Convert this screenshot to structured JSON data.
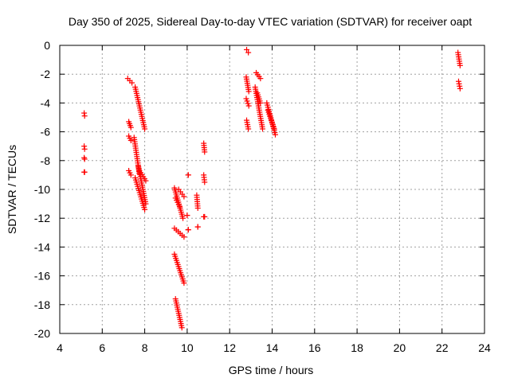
{
  "chart_data": {
    "type": "scatter",
    "title": "Day 350 of 2025, Sidereal Day-to-day VTEC variation (SDTVAR) for receiver oapt",
    "xlabel": "GPS time / hours",
    "ylabel": "SDTVAR / TECUs",
    "xlim": [
      4,
      24
    ],
    "ylim": [
      -20,
      0
    ],
    "x_ticks": [
      4,
      6,
      8,
      10,
      12,
      14,
      16,
      18,
      20,
      22,
      24
    ],
    "y_ticks": [
      0,
      -2,
      -4,
      -6,
      -8,
      -10,
      -12,
      -14,
      -16,
      -18,
      -20
    ],
    "grid": true,
    "marker": "+",
    "marker_color": "#ff0000",
    "segments": [
      {
        "x": [
          5.15,
          5.17
        ],
        "y": [
          -4.7,
          -4.9
        ]
      },
      {
        "x": [
          5.15,
          5.17
        ],
        "y": [
          -7.0,
          -7.2
        ]
      },
      {
        "x": [
          5.15,
          5.17
        ],
        "y": [
          -7.8,
          -7.9
        ]
      },
      {
        "x": [
          5.15,
          5.17
        ],
        "y": [
          -8.8,
          -8.8
        ]
      },
      {
        "x": [
          7.2,
          7.4
        ],
        "y": [
          -2.3,
          -2.6
        ]
      },
      {
        "x": [
          7.25,
          7.35
        ],
        "y": [
          -5.3,
          -5.7
        ]
      },
      {
        "x": [
          7.25,
          7.35
        ],
        "y": [
          -6.3,
          -6.6
        ]
      },
      {
        "x": [
          7.25,
          7.35
        ],
        "y": [
          -8.7,
          -9.0
        ]
      },
      {
        "x": [
          7.55,
          8.0
        ],
        "y": [
          -2.9,
          -5.8
        ]
      },
      {
        "x": [
          7.5,
          7.75
        ],
        "y": [
          -6.4,
          -8.9
        ]
      },
      {
        "x": [
          7.55,
          8.0
        ],
        "y": [
          -9.2,
          -11.4
        ]
      },
      {
        "x": [
          7.7,
          8.05
        ],
        "y": [
          -8.4,
          -11.0
        ]
      },
      {
        "x": [
          7.75,
          8.05
        ],
        "y": [
          -8.7,
          -9.4
        ]
      },
      {
        "x": [
          9.4,
          9.8
        ],
        "y": [
          -9.9,
          -12.0
        ]
      },
      {
        "x": [
          9.45,
          9.65
        ],
        "y": [
          -10.6,
          -11.2
        ]
      },
      {
        "x": [
          9.6,
          9.85
        ],
        "y": [
          -10.0,
          -10.5
        ]
      },
      {
        "x": [
          9.4,
          9.85
        ],
        "y": [
          -12.7,
          -13.3
        ]
      },
      {
        "x": [
          9.4,
          9.85
        ],
        "y": [
          -14.5,
          -16.5
        ]
      },
      {
        "x": [
          9.45,
          9.75
        ],
        "y": [
          -17.6,
          -19.6
        ]
      },
      {
        "x": [
          10.05,
          10.05
        ],
        "y": [
          -9.0,
          -9.0
        ]
      },
      {
        "x": [
          10.0,
          10.0
        ],
        "y": [
          -11.8,
          -11.8
        ]
      },
      {
        "x": [
          10.05,
          10.05
        ],
        "y": [
          -12.8,
          -12.8
        ]
      },
      {
        "x": [
          10.45,
          10.5
        ],
        "y": [
          -10.4,
          -11.3
        ]
      },
      {
        "x": [
          10.5,
          10.5
        ],
        "y": [
          -12.6,
          -12.6
        ]
      },
      {
        "x": [
          10.78,
          10.82
        ],
        "y": [
          -6.8,
          -7.4
        ]
      },
      {
        "x": [
          10.78,
          10.82
        ],
        "y": [
          -9.0,
          -9.5
        ]
      },
      {
        "x": [
          10.78,
          10.82
        ],
        "y": [
          -11.9,
          -11.9
        ]
      },
      {
        "x": [
          12.8,
          12.88
        ],
        "y": [
          -0.3,
          -0.5
        ]
      },
      {
        "x": [
          12.78,
          12.9
        ],
        "y": [
          -2.2,
          -3.2
        ]
      },
      {
        "x": [
          12.78,
          12.9
        ],
        "y": [
          -3.7,
          -4.2
        ]
      },
      {
        "x": [
          12.8,
          12.88
        ],
        "y": [
          -5.2,
          -5.8
        ]
      },
      {
        "x": [
          13.25,
          13.45
        ],
        "y": [
          -1.9,
          -2.3
        ]
      },
      {
        "x": [
          13.2,
          13.55
        ],
        "y": [
          -2.9,
          -5.8
        ]
      },
      {
        "x": [
          13.3,
          13.45
        ],
        "y": [
          -3.3,
          -4.0
        ]
      },
      {
        "x": [
          13.75,
          14.15
        ],
        "y": [
          -4.0,
          -6.2
        ]
      },
      {
        "x": [
          13.8,
          14.1
        ],
        "y": [
          -4.5,
          -5.8
        ]
      },
      {
        "x": [
          22.75,
          22.85
        ],
        "y": [
          -0.5,
          -1.4
        ]
      },
      {
        "x": [
          22.78,
          22.85
        ],
        "y": [
          -2.5,
          -3.0
        ]
      }
    ]
  }
}
